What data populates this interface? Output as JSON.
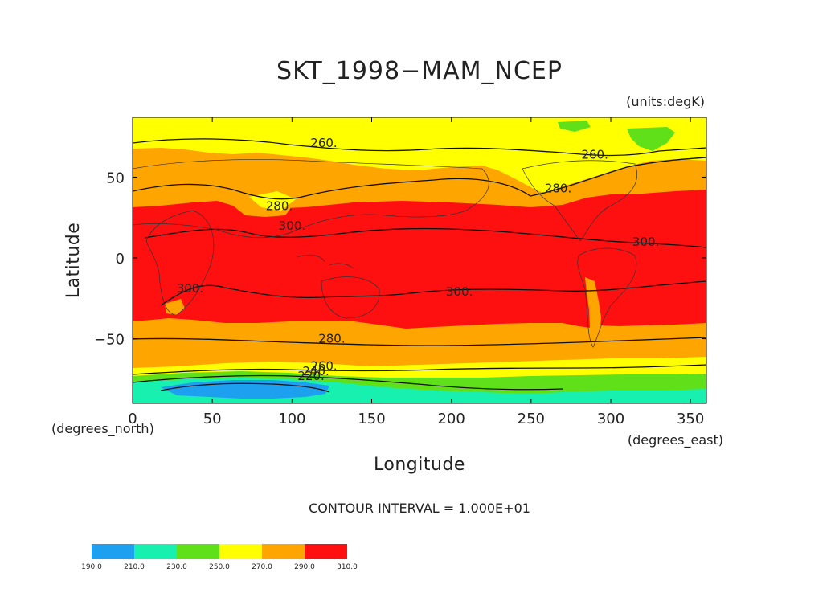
{
  "chart_data": {
    "type": "contour_map",
    "title": "SKT_1998−MAM_NCEP",
    "units_label": "(units:degK)",
    "xlabel": "Longitude",
    "ylabel": "Latitude",
    "x_unit_label": "(degrees_east)",
    "y_unit_label": "(degrees_north)",
    "xlim": [
      0,
      360
    ],
    "ylim": [
      -90,
      87
    ],
    "x_ticks": [
      0,
      50,
      100,
      150,
      200,
      250,
      300,
      350
    ],
    "y_ticks": [
      50,
      0,
      -50
    ],
    "y_tick_labels": [
      "50",
      "0",
      "−50"
    ],
    "contour_interval_text": "CONTOUR INTERVAL = 1.000E+01",
    "colorbar": {
      "levels": [
        "190.0",
        "210.0",
        "230.0",
        "250.0",
        "270.0",
        "290.0",
        "310.0"
      ],
      "colors": [
        "#1ea0f0",
        "#18f0b0",
        "#60e018",
        "#ffff00",
        "#ffa500",
        "#ff1010"
      ]
    },
    "contour_labels": [
      {
        "text": "260.",
        "lon": 120,
        "lat": 71
      },
      {
        "text": "260.",
        "lon": 290,
        "lat": 64
      },
      {
        "text": "280.",
        "lon": 267,
        "lat": 43
      },
      {
        "text": "280.",
        "lon": 92,
        "lat": 32
      },
      {
        "text": "300.",
        "lon": 100,
        "lat": 20
      },
      {
        "text": "300.",
        "lon": 322,
        "lat": 10
      },
      {
        "text": "300.",
        "lon": 205,
        "lat": -21
      },
      {
        "text": "300.",
        "lon": 36,
        "lat": -19
      },
      {
        "text": "280.",
        "lon": 125,
        "lat": -50
      },
      {
        "text": "260.",
        "lon": 120,
        "lat": -67
      },
      {
        "text": "240.",
        "lon": 115,
        "lat": -70
      },
      {
        "text": "220.",
        "lon": 112,
        "lat": -73
      }
    ]
  }
}
